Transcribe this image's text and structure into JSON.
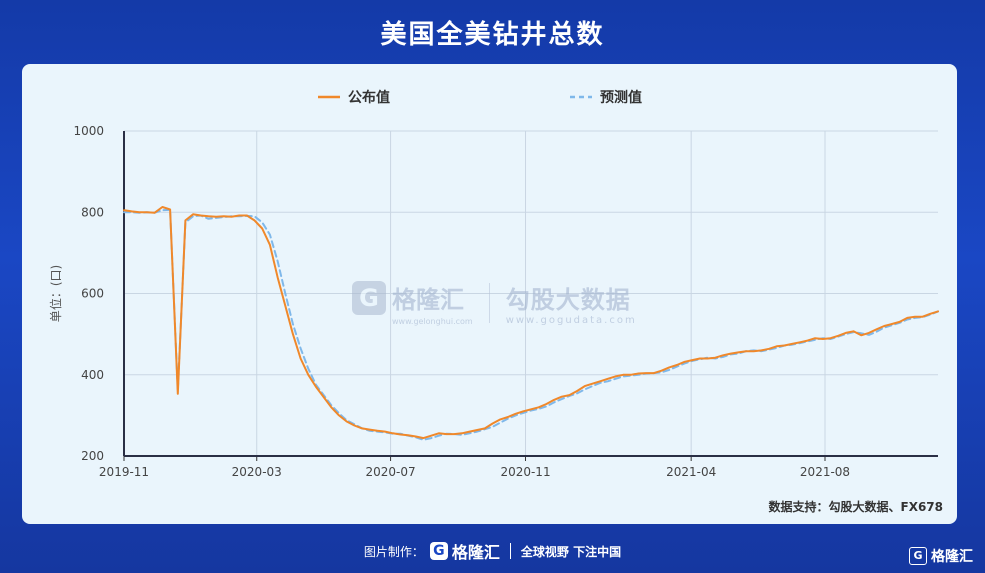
{
  "header": {
    "title": "美国全美钻井总数"
  },
  "chart_data": {
    "type": "line",
    "title": "美国全美钻井总数",
    "ylabel": "单位：(口)",
    "xlabel": "",
    "ylim": [
      200,
      1000
    ],
    "yticks": [
      200,
      400,
      600,
      800,
      1000
    ],
    "x_start_date": "2019-11-01",
    "x_end_date": "2021-11-12",
    "xtick_labels": [
      "2019-11",
      "2020-03",
      "2020-07",
      "2020-11",
      "2021-04",
      "2021-08"
    ],
    "xtick_dates": [
      "2019-11-01",
      "2020-03-01",
      "2020-07-01",
      "2020-11-01",
      "2021-04-01",
      "2021-08-01"
    ],
    "grid": true,
    "legend_position": "top-center",
    "series": [
      {
        "name": "公布值",
        "color": "#f0882a",
        "style": "solid",
        "points": [
          [
            "2019-11-01",
            805
          ],
          [
            "2019-11-08",
            802
          ],
          [
            "2019-11-15",
            800
          ],
          [
            "2019-11-22",
            800
          ],
          [
            "2019-11-29",
            799
          ],
          [
            "2019-12-06",
            813
          ],
          [
            "2019-12-13",
            807
          ],
          [
            "2019-12-20",
            353
          ],
          [
            "2019-12-27",
            780
          ],
          [
            "2020-01-03",
            795
          ],
          [
            "2020-01-10",
            792
          ],
          [
            "2020-01-17",
            790
          ],
          [
            "2020-01-24",
            789
          ],
          [
            "2020-01-31",
            790
          ],
          [
            "2020-02-07",
            789
          ],
          [
            "2020-02-14",
            792
          ],
          [
            "2020-02-21",
            792
          ],
          [
            "2020-02-28",
            780
          ],
          [
            "2020-03-06",
            760
          ],
          [
            "2020-03-13",
            720
          ],
          [
            "2020-03-20",
            640
          ],
          [
            "2020-03-27",
            570
          ],
          [
            "2020-04-03",
            500
          ],
          [
            "2020-04-10",
            440
          ],
          [
            "2020-04-17",
            400
          ],
          [
            "2020-04-24",
            370
          ],
          [
            "2020-05-01",
            345
          ],
          [
            "2020-05-08",
            320
          ],
          [
            "2020-05-15",
            300
          ],
          [
            "2020-05-22",
            285
          ],
          [
            "2020-05-29",
            275
          ],
          [
            "2020-06-05",
            268
          ],
          [
            "2020-06-12",
            265
          ],
          [
            "2020-06-19",
            262
          ],
          [
            "2020-06-26",
            260
          ],
          [
            "2020-07-03",
            256
          ],
          [
            "2020-07-10",
            253
          ],
          [
            "2020-07-17",
            251
          ],
          [
            "2020-07-24",
            248
          ],
          [
            "2020-07-31",
            244
          ],
          [
            "2020-08-07",
            250
          ],
          [
            "2020-08-14",
            256
          ],
          [
            "2020-08-21",
            254
          ],
          [
            "2020-08-28",
            254
          ],
          [
            "2020-09-04",
            256
          ],
          [
            "2020-09-11",
            260
          ],
          [
            "2020-09-18",
            264
          ],
          [
            "2020-09-25",
            268
          ],
          [
            "2020-10-02",
            280
          ],
          [
            "2020-10-09",
            290
          ],
          [
            "2020-10-16",
            296
          ],
          [
            "2020-10-23",
            304
          ],
          [
            "2020-10-30",
            310
          ],
          [
            "2020-11-06",
            315
          ],
          [
            "2020-11-13",
            320
          ],
          [
            "2020-11-20",
            328
          ],
          [
            "2020-11-27",
            338
          ],
          [
            "2020-12-04",
            346
          ],
          [
            "2020-12-11",
            350
          ],
          [
            "2020-12-18",
            360
          ],
          [
            "2020-12-25",
            372
          ],
          [
            "2021-01-01",
            378
          ],
          [
            "2021-01-08",
            384
          ],
          [
            "2021-01-15",
            390
          ],
          [
            "2021-01-22",
            396
          ],
          [
            "2021-01-29",
            400
          ],
          [
            "2021-02-05",
            400
          ],
          [
            "2021-02-12",
            403
          ],
          [
            "2021-02-19",
            404
          ],
          [
            "2021-02-26",
            404
          ],
          [
            "2021-03-05",
            410
          ],
          [
            "2021-03-12",
            418
          ],
          [
            "2021-03-19",
            424
          ],
          [
            "2021-03-26",
            432
          ],
          [
            "2021-04-02",
            436
          ],
          [
            "2021-04-09",
            440
          ],
          [
            "2021-04-16",
            440
          ],
          [
            "2021-04-23",
            442
          ],
          [
            "2021-04-30",
            448
          ],
          [
            "2021-05-07",
            452
          ],
          [
            "2021-05-14",
            455
          ],
          [
            "2021-05-21",
            458
          ],
          [
            "2021-05-28",
            458
          ],
          [
            "2021-06-04",
            460
          ],
          [
            "2021-06-11",
            464
          ],
          [
            "2021-06-18",
            470
          ],
          [
            "2021-06-25",
            472
          ],
          [
            "2021-07-02",
            476
          ],
          [
            "2021-07-09",
            480
          ],
          [
            "2021-07-16",
            484
          ],
          [
            "2021-07-23",
            490
          ],
          [
            "2021-07-30",
            488
          ],
          [
            "2021-08-06",
            490
          ],
          [
            "2021-08-13",
            496
          ],
          [
            "2021-08-20",
            503
          ],
          [
            "2021-08-27",
            507
          ],
          [
            "2021-09-03",
            497
          ],
          [
            "2021-09-10",
            503
          ],
          [
            "2021-09-17",
            512
          ],
          [
            "2021-09-24",
            520
          ],
          [
            "2021-10-01",
            525
          ],
          [
            "2021-10-08",
            530
          ],
          [
            "2021-10-15",
            540
          ],
          [
            "2021-10-22",
            543
          ],
          [
            "2021-10-29",
            543
          ],
          [
            "2021-11-05",
            550
          ],
          [
            "2021-11-12",
            556
          ]
        ]
      },
      {
        "name": "预测值",
        "color": "#7fb8ea",
        "style": "dashed",
        "points": [
          [
            "2019-11-01",
            800
          ],
          [
            "2019-11-08",
            800
          ],
          [
            "2019-11-15",
            799
          ],
          [
            "2019-11-22",
            800
          ],
          [
            "2019-11-29",
            799
          ],
          [
            "2019-12-06",
            805
          ],
          [
            "2019-12-13",
            806
          ],
          [
            "2019-12-20",
            360
          ],
          [
            "2019-12-27",
            775
          ],
          [
            "2020-01-03",
            790
          ],
          [
            "2020-01-10",
            792
          ],
          [
            "2020-01-17",
            784
          ],
          [
            "2020-01-24",
            786
          ],
          [
            "2020-01-31",
            788
          ],
          [
            "2020-02-07",
            790
          ],
          [
            "2020-02-14",
            790
          ],
          [
            "2020-02-21",
            791
          ],
          [
            "2020-02-28",
            790
          ],
          [
            "2020-03-06",
            775
          ],
          [
            "2020-03-13",
            745
          ],
          [
            "2020-03-20",
            680
          ],
          [
            "2020-03-27",
            600
          ],
          [
            "2020-04-03",
            525
          ],
          [
            "2020-04-10",
            465
          ],
          [
            "2020-04-17",
            415
          ],
          [
            "2020-04-24",
            375
          ],
          [
            "2020-05-01",
            350
          ],
          [
            "2020-05-08",
            325
          ],
          [
            "2020-05-15",
            305
          ],
          [
            "2020-05-22",
            288
          ],
          [
            "2020-05-29",
            278
          ],
          [
            "2020-06-05",
            268
          ],
          [
            "2020-06-12",
            262
          ],
          [
            "2020-06-19",
            260
          ],
          [
            "2020-06-26",
            258
          ],
          [
            "2020-07-03",
            255
          ],
          [
            "2020-07-10",
            255
          ],
          [
            "2020-07-17",
            250
          ],
          [
            "2020-07-24",
            246
          ],
          [
            "2020-07-31",
            240
          ],
          [
            "2020-08-07",
            244
          ],
          [
            "2020-08-14",
            250
          ],
          [
            "2020-08-21",
            255
          ],
          [
            "2020-08-28",
            254
          ],
          [
            "2020-09-04",
            252
          ],
          [
            "2020-09-11",
            256
          ],
          [
            "2020-09-18",
            260
          ],
          [
            "2020-09-25",
            266
          ],
          [
            "2020-10-02",
            272
          ],
          [
            "2020-10-09",
            282
          ],
          [
            "2020-10-16",
            292
          ],
          [
            "2020-10-23",
            300
          ],
          [
            "2020-10-30",
            306
          ],
          [
            "2020-11-06",
            312
          ],
          [
            "2020-11-13",
            316
          ],
          [
            "2020-11-20",
            322
          ],
          [
            "2020-11-27",
            332
          ],
          [
            "2020-12-04",
            340
          ],
          [
            "2020-12-11",
            348
          ],
          [
            "2020-12-18",
            354
          ],
          [
            "2020-12-25",
            364
          ],
          [
            "2021-01-01",
            372
          ],
          [
            "2021-01-08",
            380
          ],
          [
            "2021-01-15",
            384
          ],
          [
            "2021-01-22",
            390
          ],
          [
            "2021-01-29",
            396
          ],
          [
            "2021-02-05",
            398
          ],
          [
            "2021-02-12",
            400
          ],
          [
            "2021-02-19",
            403
          ],
          [
            "2021-02-26",
            404
          ],
          [
            "2021-03-05",
            406
          ],
          [
            "2021-03-12",
            412
          ],
          [
            "2021-03-19",
            420
          ],
          [
            "2021-03-26",
            428
          ],
          [
            "2021-04-02",
            434
          ],
          [
            "2021-04-09",
            438
          ],
          [
            "2021-04-16",
            442
          ],
          [
            "2021-04-23",
            440
          ],
          [
            "2021-04-30",
            444
          ],
          [
            "2021-05-07",
            450
          ],
          [
            "2021-05-14",
            452
          ],
          [
            "2021-05-21",
            458
          ],
          [
            "2021-05-28",
            460
          ],
          [
            "2021-06-04",
            458
          ],
          [
            "2021-06-11",
            462
          ],
          [
            "2021-06-18",
            466
          ],
          [
            "2021-06-25",
            472
          ],
          [
            "2021-07-02",
            474
          ],
          [
            "2021-07-09",
            478
          ],
          [
            "2021-07-16",
            482
          ],
          [
            "2021-07-23",
            486
          ],
          [
            "2021-07-30",
            490
          ],
          [
            "2021-08-06",
            488
          ],
          [
            "2021-08-13",
            494
          ],
          [
            "2021-08-20",
            500
          ],
          [
            "2021-08-27",
            505
          ],
          [
            "2021-09-03",
            502
          ],
          [
            "2021-09-10",
            498
          ],
          [
            "2021-09-17",
            506
          ],
          [
            "2021-09-24",
            516
          ],
          [
            "2021-10-01",
            522
          ],
          [
            "2021-10-08",
            528
          ],
          [
            "2021-10-15",
            536
          ],
          [
            "2021-10-22",
            540
          ],
          [
            "2021-10-29",
            542
          ],
          [
            "2021-11-05",
            548
          ],
          [
            "2021-11-12",
            556
          ]
        ]
      }
    ]
  },
  "source": {
    "text": "数据支持：勾股大数据、FX678"
  },
  "watermark": {
    "logo_letter": "G",
    "name": "格隆汇",
    "name_url": "www.gelonghui.com",
    "gogu_name": "勾股大数据",
    "gogu_url": "www.gogudata.com"
  },
  "footer": {
    "made_by": "图片制作：",
    "logo_letter": "G",
    "brand": "格隆汇",
    "slogan": "全球视野 下注中国"
  },
  "corner": {
    "logo_letter": "G",
    "brand": "格隆汇"
  }
}
